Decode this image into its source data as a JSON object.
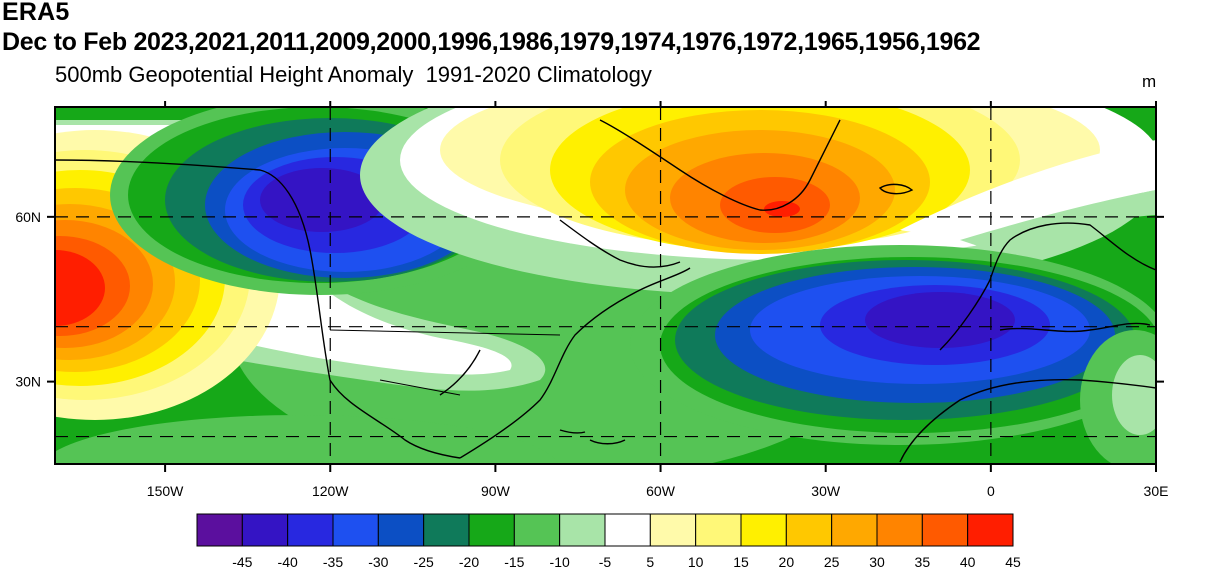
{
  "header": {
    "source": "ERA5",
    "period_years": "Dec to Feb 2023,2021,2011,2009,2000,1996,1986,1979,1974,1976,1972,1965,1956,1962",
    "subtitle": "500mb Geopotential Height Anomaly  1991-2020 Climatology",
    "units": "m"
  },
  "map": {
    "type": "filled-contour-map",
    "projection": "cylindrical-equidistant",
    "lon_range": [
      -170,
      30
    ],
    "lat_range": [
      15,
      80
    ],
    "lon_ticks": [
      {
        "lon": -150,
        "label": "150W"
      },
      {
        "lon": -120,
        "label": "120W"
      },
      {
        "lon": -90,
        "label": "90W"
      },
      {
        "lon": -60,
        "label": "60W"
      },
      {
        "lon": -30,
        "label": "30W"
      },
      {
        "lon": 0,
        "label": "0"
      },
      {
        "lon": 30,
        "label": "30E"
      }
    ],
    "lat_ticks": [
      {
        "lat": 60,
        "label": "60N"
      },
      {
        "lat": 30,
        "label": "30N"
      }
    ],
    "dashed_latitudes": [
      60,
      40,
      20
    ],
    "dashed_longitudes": [
      -120,
      -60,
      0
    ],
    "features": [
      {
        "name": "north-pacific-positive-anomaly",
        "lon": -168,
        "lat": 48,
        "peak": 45
      },
      {
        "name": "canada-negative-anomaly",
        "lon": -115,
        "lat": 63,
        "peak": -40
      },
      {
        "name": "greenland-positive-anomaly",
        "lon": -40,
        "lat": 62,
        "peak": 40
      },
      {
        "name": "iberia-negative-anomaly",
        "lon": -18,
        "lat": 42,
        "peak": -40
      }
    ]
  },
  "colorbar": {
    "colors": [
      "#5b0f9e",
      "#3414c4",
      "#2828e0",
      "#1e50f0",
      "#0c4fc4",
      "#0f7a5a",
      "#16a818",
      "#55c455",
      "#a8e4a8",
      "#ffffff",
      "#fffaaa",
      "#fff878",
      "#fff000",
      "#ffc800",
      "#ffa800",
      "#ff8400",
      "#ff5a00",
      "#ff1e00"
    ],
    "labels": [
      "-45",
      "-40",
      "-35",
      "-30",
      "-25",
      "-20",
      "-15",
      "-10",
      "-5",
      "5",
      "10",
      "15",
      "20",
      "25",
      "30",
      "35",
      "40",
      "45"
    ]
  }
}
